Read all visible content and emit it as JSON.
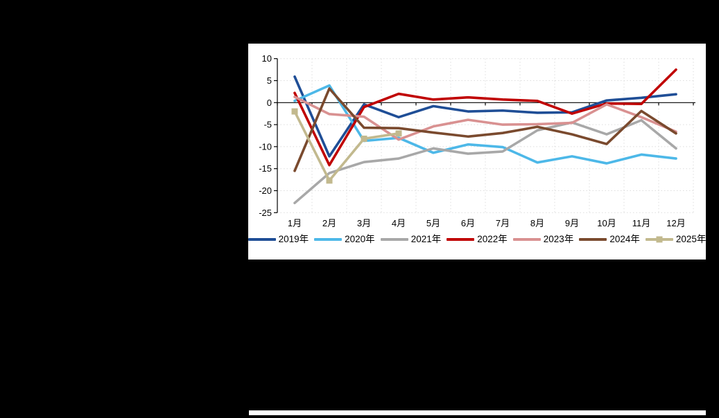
{
  "page_background": "#000000",
  "panel_background": "#FFFFFF",
  "axis_color": "#000000",
  "gridline_color": "#DDDDDD",
  "chart_data": {
    "type": "line",
    "title": "",
    "xlabel": "",
    "ylabel": "",
    "categories": [
      "1月",
      "2月",
      "3月",
      "4月",
      "5月",
      "6月",
      "7月",
      "8月",
      "9月",
      "10月",
      "11月",
      "12月"
    ],
    "y_ticks": [
      10,
      5,
      0,
      -5,
      -10,
      -15,
      -20,
      -25
    ],
    "ylim": [
      -25,
      10
    ],
    "grid": "dotted",
    "legend_position": "bottom",
    "series": [
      {
        "name": "2019年",
        "color": "#1F4E96",
        "marker": "none",
        "values": [
          5.9,
          -12.2,
          -0.4,
          -3.3,
          -0.8,
          -2.0,
          -1.8,
          -2.3,
          -2.2,
          0.5,
          1.1,
          1.9
        ]
      },
      {
        "name": "2020年",
        "color": "#4DB8E8",
        "marker": "none",
        "values": [
          0.4,
          3.9,
          -8.7,
          -8.0,
          -11.4,
          -9.5,
          -10.1,
          -13.6,
          -12.2,
          -13.8,
          -11.8,
          -12.7
        ]
      },
      {
        "name": "2021年",
        "color": "#A8A8A8",
        "marker": "none",
        "values": [
          -22.8,
          -16.0,
          -13.5,
          -12.7,
          -10.4,
          -11.6,
          -11.1,
          -6.3,
          -4.5,
          -7.2,
          -4.0,
          -10.4
        ]
      },
      {
        "name": "2022年",
        "color": "#C00000",
        "marker": "none",
        "values": [
          2.2,
          -14.2,
          -1.0,
          2.0,
          0.7,
          1.2,
          0.7,
          0.4,
          -2.5,
          -0.2,
          -0.3,
          7.5
        ]
      },
      {
        "name": "2023年",
        "color": "#D99191",
        "marker": "none",
        "values": [
          1.3,
          -2.6,
          -3.2,
          -8.4,
          -5.4,
          -3.9,
          -5.0,
          -4.9,
          -4.6,
          -0.4,
          -3.3,
          -6.6
        ]
      },
      {
        "name": "2024年",
        "color": "#7A4A2E",
        "marker": "none",
        "values": [
          -15.5,
          3.2,
          -5.7,
          -5.8,
          -6.8,
          -7.7,
          -6.9,
          -5.5,
          -7.2,
          -9.4,
          -1.9,
          -7.0
        ]
      },
      {
        "name": "2025年",
        "color": "#C2B98E",
        "marker": "square",
        "values": [
          -2.0,
          -17.7,
          -8.2,
          -7.0
        ]
      }
    ]
  }
}
